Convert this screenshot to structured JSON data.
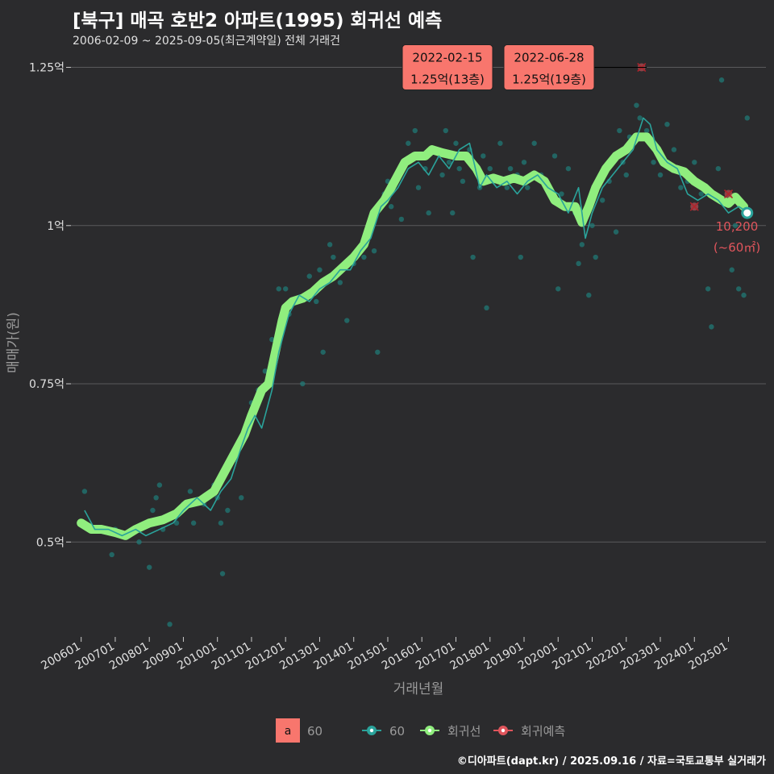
{
  "header": {
    "title": "[북구] 매곡 호반2 아파트(1995) 회귀선 예측",
    "subtitle": "2006-02-09 ~ 2025-09-05(최근계약일) 전체 거래건"
  },
  "footer": {
    "credit": "©디아파트(dapt.kr) / 2025.09.16 / 자료=국토교통부 실거래가"
  },
  "colors": {
    "background": "#2b2b2d",
    "grid": "#5a5a5c",
    "points": "#1f7f7a",
    "trade_line": "#2aa39b",
    "regression": "#90ee7e",
    "forecast": "#e0555c",
    "label_box": "#f8766d"
  },
  "chart_data": {
    "type": "line",
    "title": "[북구] 매곡 호반2 아파트(1995) 회귀선 예측",
    "xlabel": "거래년월",
    "ylabel": "매매가(원)",
    "ylim": [
      0.35,
      1.28
    ],
    "xlim": [
      2005.7,
      2026.1
    ],
    "yticks": [
      0.5,
      0.75,
      1.0,
      1.25
    ],
    "ytick_labels": [
      "0.5억",
      "0.75억",
      "1억",
      "1.25억"
    ],
    "xticks": [
      2006,
      2007,
      2008,
      2009,
      2010,
      2011,
      2012,
      2013,
      2014,
      2015,
      2016,
      2017,
      2018,
      2019,
      2020,
      2021,
      2022,
      2023,
      2024,
      2025
    ],
    "xtick_labels": [
      "200601",
      "200701",
      "200801",
      "200901",
      "201001",
      "201101",
      "201201",
      "201301",
      "201401",
      "201501",
      "201601",
      "201701",
      "201801",
      "201901",
      "202001",
      "202101",
      "202201",
      "202301",
      "202401",
      "202501"
    ],
    "grid": true,
    "series": [
      {
        "name": "회귀선",
        "x": [
          2006.0,
          2006.3,
          2006.6,
          2007.0,
          2007.3,
          2007.6,
          2008.0,
          2008.4,
          2008.8,
          2009.1,
          2009.5,
          2009.9,
          2010.2,
          2010.5,
          2010.8,
          2011.0,
          2011.3,
          2011.5,
          2011.7,
          2011.9,
          2012.0,
          2012.2,
          2012.5,
          2012.8,
          2013.1,
          2013.4,
          2013.7,
          2014.0,
          2014.3,
          2014.6,
          2014.9,
          2015.2,
          2015.5,
          2015.8,
          2016.1,
          2016.3,
          2016.6,
          2017.0,
          2017.3,
          2017.6,
          2017.8,
          2018.1,
          2018.4,
          2018.7,
          2019.0,
          2019.3,
          2019.6,
          2019.9,
          2020.2,
          2020.5,
          2020.7,
          2020.9,
          2021.1,
          2021.4,
          2021.7,
          2022.0,
          2022.3,
          2022.6,
          2022.9,
          2023.1,
          2023.4,
          2023.7,
          2024.0,
          2024.3,
          2024.5,
          2024.8,
          2025.0,
          2025.2,
          2025.45
        ],
        "values": [
          0.53,
          0.52,
          0.52,
          0.515,
          0.51,
          0.52,
          0.53,
          0.535,
          0.545,
          0.56,
          0.565,
          0.58,
          0.61,
          0.64,
          0.67,
          0.7,
          0.74,
          0.75,
          0.8,
          0.85,
          0.87,
          0.88,
          0.885,
          0.895,
          0.91,
          0.92,
          0.935,
          0.95,
          0.97,
          1.02,
          1.04,
          1.07,
          1.1,
          1.11,
          1.11,
          1.12,
          1.115,
          1.11,
          1.11,
          1.09,
          1.07,
          1.075,
          1.07,
          1.075,
          1.07,
          1.08,
          1.07,
          1.04,
          1.03,
          1.03,
          1.005,
          1.03,
          1.06,
          1.09,
          1.11,
          1.12,
          1.14,
          1.14,
          1.12,
          1.1,
          1.09,
          1.085,
          1.07,
          1.06,
          1.05,
          1.04,
          1.035,
          1.045,
          1.03
        ]
      },
      {
        "name": "60",
        "x": [
          2006.1,
          2006.4,
          2006.8,
          2007.2,
          2007.6,
          2007.9,
          2008.3,
          2008.7,
          2009.0,
          2009.4,
          2009.8,
          2010.1,
          2010.4,
          2010.7,
          2010.9,
          2011.1,
          2011.3,
          2011.6,
          2011.8,
          2011.95,
          2012.1,
          2012.4,
          2012.7,
          2013.0,
          2013.3,
          2013.6,
          2013.9,
          2014.2,
          2014.5,
          2014.8,
          2015.0,
          2015.3,
          2015.6,
          2015.9,
          2016.2,
          2016.5,
          2016.8,
          2017.1,
          2017.4,
          2017.7,
          2017.9,
          2018.2,
          2018.5,
          2018.8,
          2019.1,
          2019.4,
          2019.7,
          2020.0,
          2020.3,
          2020.6,
          2020.8,
          2021.0,
          2021.3,
          2021.6,
          2021.9,
          2022.2,
          2022.5,
          2022.7,
          2022.9,
          2023.2,
          2023.5,
          2023.8,
          2024.1,
          2024.4,
          2024.7,
          2025.0,
          2025.3,
          2025.6
        ],
        "values": [
          0.55,
          0.52,
          0.52,
          0.51,
          0.52,
          0.51,
          0.52,
          0.53,
          0.55,
          0.57,
          0.55,
          0.58,
          0.6,
          0.65,
          0.68,
          0.7,
          0.68,
          0.74,
          0.8,
          0.83,
          0.86,
          0.89,
          0.88,
          0.9,
          0.91,
          0.93,
          0.93,
          0.96,
          0.98,
          1.03,
          1.04,
          1.06,
          1.09,
          1.1,
          1.08,
          1.11,
          1.09,
          1.12,
          1.13,
          1.06,
          1.08,
          1.06,
          1.07,
          1.05,
          1.07,
          1.08,
          1.06,
          1.05,
          1.02,
          1.06,
          0.98,
          1.02,
          1.06,
          1.08,
          1.1,
          1.12,
          1.17,
          1.16,
          1.12,
          1.1,
          1.09,
          1.05,
          1.04,
          1.05,
          1.04,
          1.02,
          1.03,
          1.02
        ]
      },
      {
        "name": "회귀예측",
        "x": [
          2022.45,
          2024.0,
          2025.0
        ],
        "values": [
          1.25,
          1.03,
          1.05
        ]
      }
    ],
    "scatter_points": [
      [
        2006.1,
        0.58
      ],
      [
        2006.3,
        0.52
      ],
      [
        2006.6,
        0.52
      ],
      [
        2006.9,
        0.48
      ],
      [
        2007.0,
        0.52
      ],
      [
        2007.2,
        0.51
      ],
      [
        2007.5,
        0.52
      ],
      [
        2007.7,
        0.5
      ],
      [
        2008.0,
        0.46
      ],
      [
        2008.1,
        0.55
      ],
      [
        2008.2,
        0.57
      ],
      [
        2008.3,
        0.59
      ],
      [
        2008.4,
        0.52
      ],
      [
        2008.6,
        0.37
      ],
      [
        2008.8,
        0.53
      ],
      [
        2009.0,
        0.56
      ],
      [
        2009.2,
        0.58
      ],
      [
        2009.3,
        0.53
      ],
      [
        2009.6,
        0.56
      ],
      [
        2009.9,
        0.59
      ],
      [
        2010.0,
        0.57
      ],
      [
        2010.1,
        0.53
      ],
      [
        2010.15,
        0.45
      ],
      [
        2010.3,
        0.55
      ],
      [
        2010.5,
        0.63
      ],
      [
        2010.7,
        0.57
      ],
      [
        2010.9,
        0.68
      ],
      [
        2011.0,
        0.72
      ],
      [
        2011.2,
        0.74
      ],
      [
        2011.4,
        0.77
      ],
      [
        2011.6,
        0.82
      ],
      [
        2011.8,
        0.9
      ],
      [
        2012.0,
        0.9
      ],
      [
        2012.1,
        0.86
      ],
      [
        2012.3,
        0.88
      ],
      [
        2012.5,
        0.75
      ],
      [
        2012.7,
        0.92
      ],
      [
        2012.9,
        0.88
      ],
      [
        2013.0,
        0.93
      ],
      [
        2013.1,
        0.8
      ],
      [
        2013.3,
        0.97
      ],
      [
        2013.4,
        0.95
      ],
      [
        2013.6,
        0.91
      ],
      [
        2013.8,
        0.85
      ],
      [
        2014.0,
        0.94
      ],
      [
        2014.2,
        0.96
      ],
      [
        2014.3,
        0.95
      ],
      [
        2014.4,
        0.98
      ],
      [
        2014.6,
        0.96
      ],
      [
        2014.7,
        0.8
      ],
      [
        2014.9,
        1.05
      ],
      [
        2015.0,
        1.07
      ],
      [
        2015.1,
        1.03
      ],
      [
        2015.3,
        1.08
      ],
      [
        2015.4,
        1.01
      ],
      [
        2015.5,
        1.1
      ],
      [
        2015.6,
        1.13
      ],
      [
        2015.8,
        1.15
      ],
      [
        2015.9,
        1.06
      ],
      [
        2016.0,
        1.11
      ],
      [
        2016.1,
        1.09
      ],
      [
        2016.2,
        1.02
      ],
      [
        2016.4,
        1.12
      ],
      [
        2016.6,
        1.08
      ],
      [
        2016.7,
        1.15
      ],
      [
        2016.8,
        1.1
      ],
      [
        2016.9,
        1.02
      ],
      [
        2017.0,
        1.13
      ],
      [
        2017.1,
        1.09
      ],
      [
        2017.2,
        1.07
      ],
      [
        2017.4,
        1.12
      ],
      [
        2017.5,
        0.95
      ],
      [
        2017.7,
        1.06
      ],
      [
        2017.8,
        1.11
      ],
      [
        2017.9,
        0.87
      ],
      [
        2018.0,
        1.09
      ],
      [
        2018.1,
        1.07
      ],
      [
        2018.3,
        1.13
      ],
      [
        2018.5,
        1.06
      ],
      [
        2018.6,
        1.09
      ],
      [
        2018.8,
        1.08
      ],
      [
        2018.9,
        0.95
      ],
      [
        2019.0,
        1.1
      ],
      [
        2019.1,
        1.06
      ],
      [
        2019.3,
        1.13
      ],
      [
        2019.5,
        1.08
      ],
      [
        2019.6,
        1.07
      ],
      [
        2019.8,
        1.05
      ],
      [
        2019.9,
        1.11
      ],
      [
        2020.0,
        0.9
      ],
      [
        2020.1,
        1.05
      ],
      [
        2020.3,
        1.09
      ],
      [
        2020.5,
        1.02
      ],
      [
        2020.6,
        0.94
      ],
      [
        2020.7,
        0.97
      ],
      [
        2020.9,
        0.89
      ],
      [
        2021.0,
        1.0
      ],
      [
        2021.1,
        0.95
      ],
      [
        2021.3,
        1.04
      ],
      [
        2021.5,
        1.07
      ],
      [
        2021.7,
        0.99
      ],
      [
        2021.8,
        1.15
      ],
      [
        2021.9,
        1.1
      ],
      [
        2022.0,
        1.08
      ],
      [
        2022.1,
        1.14
      ],
      [
        2022.3,
        1.19
      ],
      [
        2022.4,
        1.17
      ],
      [
        2022.6,
        1.15
      ],
      [
        2022.8,
        1.1
      ],
      [
        2023.0,
        1.08
      ],
      [
        2023.2,
        1.16
      ],
      [
        2023.4,
        1.12
      ],
      [
        2023.6,
        1.06
      ],
      [
        2023.8,
        1.07
      ],
      [
        2024.0,
        1.1
      ],
      [
        2024.2,
        1.05
      ],
      [
        2024.4,
        0.9
      ],
      [
        2024.5,
        0.84
      ],
      [
        2024.7,
        1.09
      ],
      [
        2024.8,
        1.23
      ],
      [
        2024.9,
        1.04
      ],
      [
        2025.1,
        0.93
      ],
      [
        2025.2,
        1.0
      ],
      [
        2025.3,
        0.9
      ],
      [
        2025.45,
        0.89
      ],
      [
        2025.55,
        1.17
      ]
    ],
    "annotations": [
      {
        "date": "2022-02-15",
        "text": "1.25억(13층)",
        "x": 2022.12,
        "y": 1.25
      },
      {
        "date": "2022-06-28",
        "text": "1.25억(19층)",
        "x": 2022.49,
        "y": 1.25
      }
    ],
    "last_point": {
      "x": 2025.55,
      "y": 1.02,
      "label_value": "10,200",
      "label_area": "(~60㎡)"
    },
    "legend": {
      "key_letter": "a",
      "items": [
        "60",
        "60",
        "회귀선",
        "회귀예측"
      ]
    }
  }
}
